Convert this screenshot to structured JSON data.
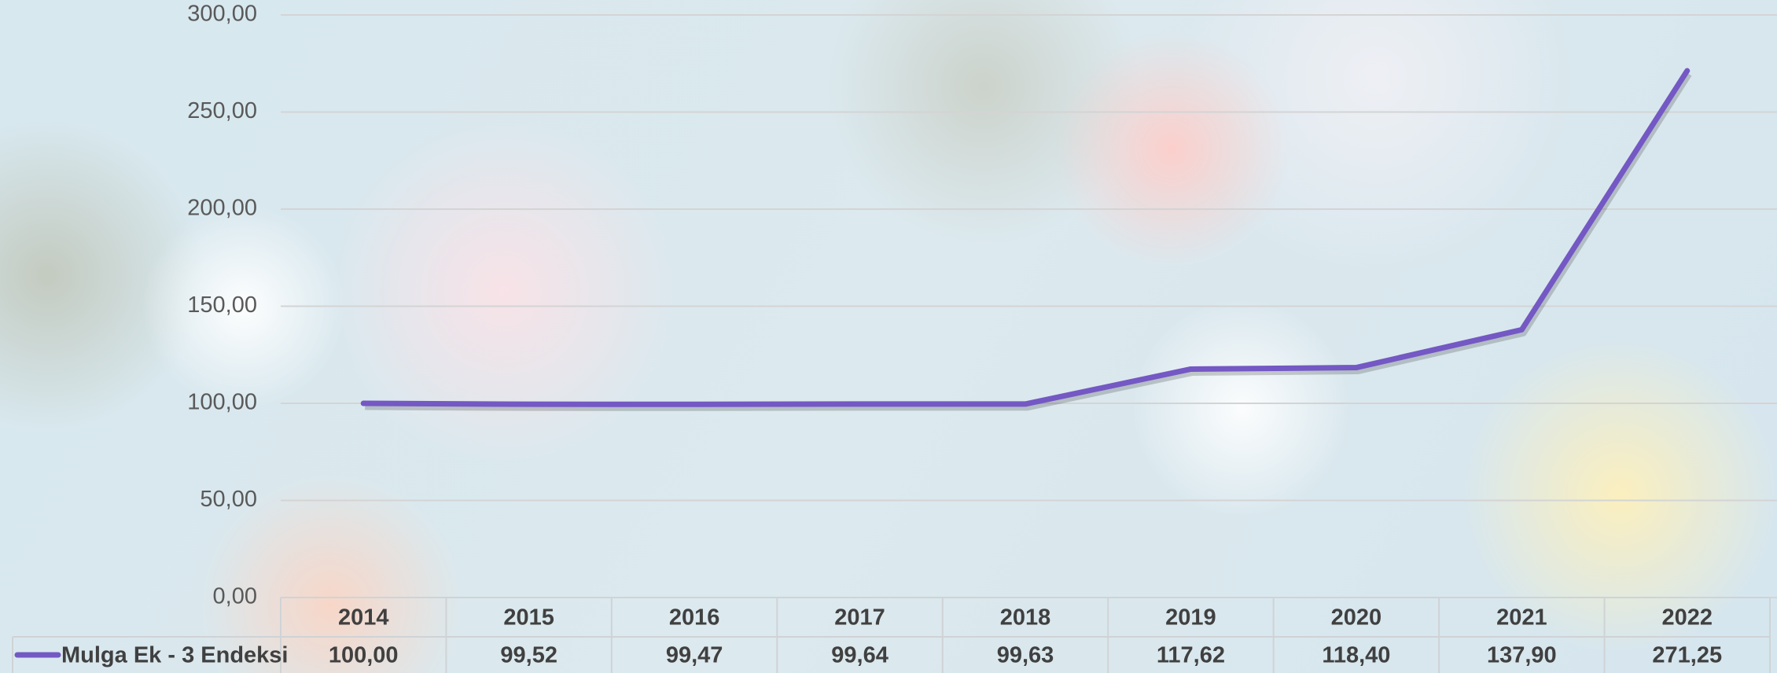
{
  "chart_data": {
    "type": "line",
    "categories": [
      "2014",
      "2015",
      "2016",
      "2017",
      "2018",
      "2019",
      "2020",
      "2021",
      "2022"
    ],
    "series": [
      {
        "name": "Mulga Ek - 3 Endeksi",
        "color": "#7458c4",
        "values": [
          100,
          99.52,
          99.47,
          99.64,
          99.63,
          117.62,
          118.4,
          137.9,
          271.25
        ],
        "value_labels": [
          "100,00",
          "99,52",
          "99,47",
          "99,64",
          "99,63",
          "117,62",
          "118,40",
          "137,90",
          "271,25"
        ]
      }
    ],
    "ylim": [
      0,
      300
    ],
    "yticks": [
      {
        "value": 0,
        "label": "0,00"
      },
      {
        "value": 50,
        "label": "50,00"
      },
      {
        "value": 100,
        "label": "100,00"
      },
      {
        "value": 150,
        "label": "150,00"
      },
      {
        "value": 200,
        "label": "200,00"
      },
      {
        "value": 250,
        "label": "250,00"
      },
      {
        "value": 300,
        "label": "300,00"
      }
    ],
    "grid": true,
    "data_table": true
  }
}
